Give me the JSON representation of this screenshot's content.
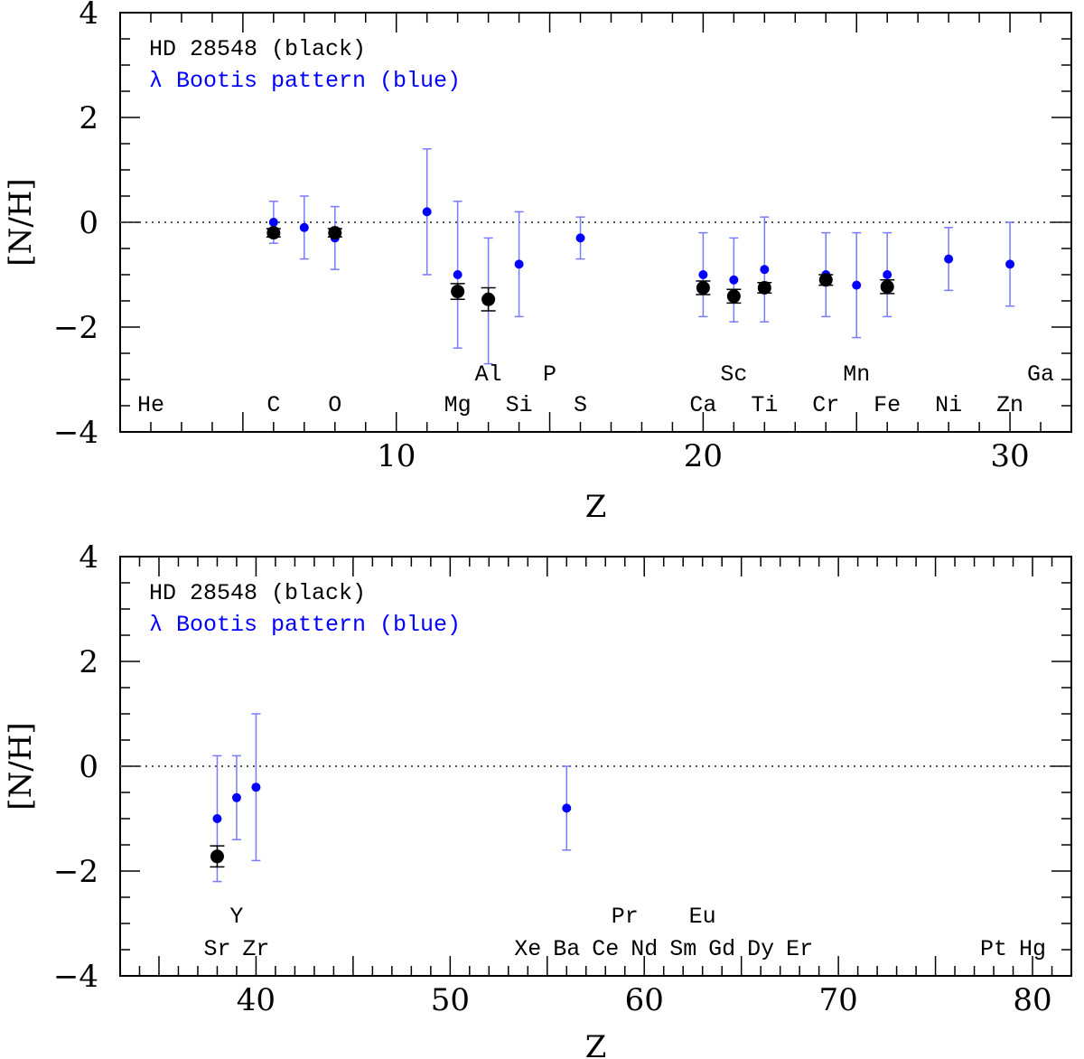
{
  "chart_data": [
    {
      "type": "scatter",
      "title": "",
      "xlabel": "Z",
      "ylabel": "[N/H]",
      "xlim": [
        1,
        32
      ],
      "ylim": [
        -4,
        4
      ],
      "xticks": [
        10,
        20,
        30
      ],
      "yticks": [
        -4,
        -2,
        0,
        2,
        4
      ],
      "legend": {
        "position": "top-left",
        "entries": [
          {
            "text": "HD 28548 (black)",
            "color": "#000000"
          },
          {
            "text": "λ Bootis pattern (blue)",
            "color": "#0000ff"
          }
        ]
      },
      "reference_line": {
        "y": 0,
        "style": "dotted"
      },
      "element_labels": [
        {
          "z": 2,
          "symbol": "He",
          "row": "low"
        },
        {
          "z": 6,
          "symbol": "C",
          "row": "low"
        },
        {
          "z": 8,
          "symbol": "O",
          "row": "low"
        },
        {
          "z": 12,
          "symbol": "Mg",
          "row": "low"
        },
        {
          "z": 13,
          "symbol": "Al",
          "row": "high"
        },
        {
          "z": 14,
          "symbol": "Si",
          "row": "low"
        },
        {
          "z": 15,
          "symbol": "P",
          "row": "high"
        },
        {
          "z": 16,
          "symbol": "S",
          "row": "low"
        },
        {
          "z": 20,
          "symbol": "Ca",
          "row": "low"
        },
        {
          "z": 21,
          "symbol": "Sc",
          "row": "high"
        },
        {
          "z": 22,
          "symbol": "Ti",
          "row": "low"
        },
        {
          "z": 24,
          "symbol": "Cr",
          "row": "low"
        },
        {
          "z": 25,
          "symbol": "Mn",
          "row": "high"
        },
        {
          "z": 26,
          "symbol": "Fe",
          "row": "low"
        },
        {
          "z": 28,
          "symbol": "Ni",
          "row": "low"
        },
        {
          "z": 30,
          "symbol": "Zn",
          "row": "low"
        },
        {
          "z": 31,
          "symbol": "Ga",
          "row": "high"
        }
      ],
      "series": [
        {
          "name": "λ Bootis pattern",
          "color": "#0000ff",
          "points": [
            {
              "z": 6,
              "value": 0.0,
              "lo": -0.4,
              "hi": 0.4
            },
            {
              "z": 7,
              "value": -0.1,
              "lo": -0.7,
              "hi": 0.5
            },
            {
              "z": 8,
              "value": -0.3,
              "lo": -0.9,
              "hi": 0.3
            },
            {
              "z": 11,
              "value": 0.2,
              "lo": -1.0,
              "hi": 1.4
            },
            {
              "z": 12,
              "value": -1.0,
              "lo": -2.4,
              "hi": 0.4
            },
            {
              "z": 13,
              "value": -1.5,
              "lo": -2.7,
              "hi": -0.3
            },
            {
              "z": 14,
              "value": -0.8,
              "lo": -1.8,
              "hi": 0.2
            },
            {
              "z": 16,
              "value": -0.3,
              "lo": -0.7,
              "hi": 0.1
            },
            {
              "z": 20,
              "value": -1.0,
              "lo": -1.8,
              "hi": -0.2
            },
            {
              "z": 21,
              "value": -1.1,
              "lo": -1.9,
              "hi": -0.3
            },
            {
              "z": 22,
              "value": -0.9,
              "lo": -1.9,
              "hi": 0.1
            },
            {
              "z": 24,
              "value": -1.0,
              "lo": -1.8,
              "hi": -0.2
            },
            {
              "z": 25,
              "value": -1.2,
              "lo": -2.2,
              "hi": -0.2
            },
            {
              "z": 26,
              "value": -1.0,
              "lo": -1.8,
              "hi": -0.2
            },
            {
              "z": 28,
              "value": -0.7,
              "lo": -1.3,
              "hi": -0.1
            },
            {
              "z": 30,
              "value": -0.8,
              "lo": -1.6,
              "hi": 0.0
            }
          ]
        },
        {
          "name": "HD 28548",
          "color": "#000000",
          "points": [
            {
              "z": 6,
              "value": -0.2,
              "err": 0.08
            },
            {
              "z": 8,
              "value": -0.2,
              "err": 0.08
            },
            {
              "z": 12,
              "value": -1.32,
              "err": 0.15
            },
            {
              "z": 13,
              "value": -1.47,
              "err": 0.22
            },
            {
              "z": 20,
              "value": -1.25,
              "err": 0.13
            },
            {
              "z": 21,
              "value": -1.41,
              "err": 0.13
            },
            {
              "z": 22,
              "value": -1.25,
              "err": 0.1
            },
            {
              "z": 24,
              "value": -1.1,
              "err": 0.1
            },
            {
              "z": 26,
              "value": -1.23,
              "err": 0.13
            }
          ]
        }
      ]
    },
    {
      "type": "scatter",
      "title": "",
      "xlabel": "Z",
      "ylabel": "[N/H]",
      "xlim": [
        33,
        82
      ],
      "ylim": [
        -4,
        4
      ],
      "xticks": [
        40,
        50,
        60,
        70,
        80
      ],
      "yticks": [
        -4,
        -2,
        0,
        2,
        4
      ],
      "legend": {
        "position": "top-left",
        "entries": [
          {
            "text": "HD 28548 (black)",
            "color": "#000000"
          },
          {
            "text": "λ Bootis pattern (blue)",
            "color": "#0000ff"
          }
        ]
      },
      "reference_line": {
        "y": 0,
        "style": "dotted"
      },
      "element_labels": [
        {
          "z": 38,
          "symbol": "Sr",
          "row": "low"
        },
        {
          "z": 39,
          "symbol": "Y",
          "row": "high"
        },
        {
          "z": 40,
          "symbol": "Zr",
          "row": "low"
        },
        {
          "z": 54,
          "symbol": "Xe",
          "row": "low"
        },
        {
          "z": 56,
          "symbol": "Ba",
          "row": "low"
        },
        {
          "z": 58,
          "symbol": "Ce",
          "row": "low"
        },
        {
          "z": 59,
          "symbol": "Pr",
          "row": "high"
        },
        {
          "z": 60,
          "symbol": "Nd",
          "row": "low"
        },
        {
          "z": 62,
          "symbol": "Sm",
          "row": "low"
        },
        {
          "z": 63,
          "symbol": "Eu",
          "row": "high"
        },
        {
          "z": 64,
          "symbol": "Gd",
          "row": "low"
        },
        {
          "z": 66,
          "symbol": "Dy",
          "row": "low"
        },
        {
          "z": 68,
          "symbol": "Er",
          "row": "low"
        },
        {
          "z": 78,
          "symbol": "Pt",
          "row": "low"
        },
        {
          "z": 80,
          "symbol": "Hg",
          "row": "low"
        }
      ],
      "series": [
        {
          "name": "λ Bootis pattern",
          "color": "#0000ff",
          "points": [
            {
              "z": 38,
              "value": -1.0,
              "lo": -2.2,
              "hi": 0.2
            },
            {
              "z": 39,
              "value": -0.6,
              "lo": -1.4,
              "hi": 0.2
            },
            {
              "z": 40,
              "value": -0.4,
              "lo": -1.8,
              "hi": 1.0
            },
            {
              "z": 56,
              "value": -0.8,
              "lo": -1.6,
              "hi": 0.0
            }
          ]
        },
        {
          "name": "HD 28548",
          "color": "#000000",
          "points": [
            {
              "z": 38,
              "value": -1.72,
              "err": 0.2
            }
          ]
        }
      ]
    }
  ]
}
